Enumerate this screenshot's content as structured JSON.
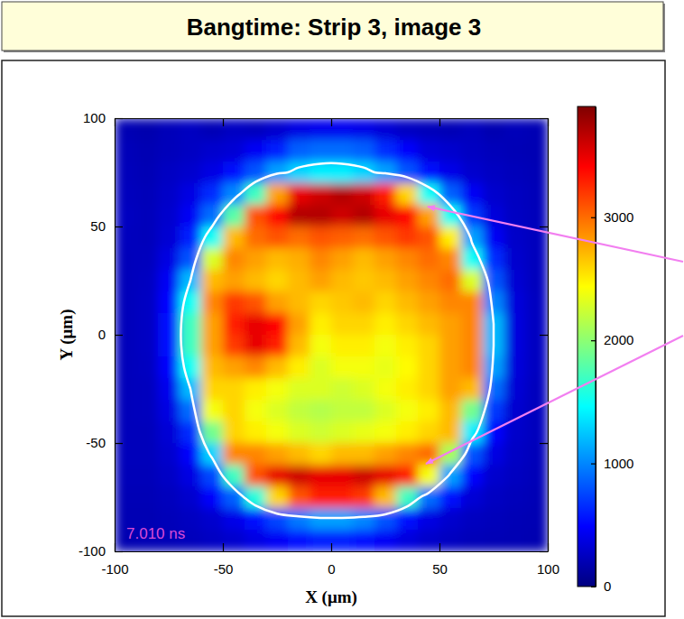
{
  "chart_data": {
    "type": "heatmap",
    "title": "Bangtime: Strip 3, image 3",
    "annotations": [
      "7.010 ns"
    ],
    "x_label": "X (μm)",
    "y_label": "Y (μm)",
    "xlim": [
      -100,
      100
    ],
    "ylim": [
      -100,
      100
    ],
    "xticks": [
      -100,
      -50,
      0,
      50,
      100
    ],
    "yticks": [
      -100,
      -50,
      0,
      50,
      100
    ],
    "x": [
      -95,
      -85,
      -75,
      -65,
      -55,
      -45,
      -35,
      -25,
      -15,
      -5,
      5,
      15,
      25,
      35,
      45,
      55,
      65,
      75,
      85,
      95
    ],
    "y": [
      95,
      85,
      75,
      65,
      55,
      45,
      35,
      25,
      15,
      5,
      -5,
      -15,
      -25,
      -35,
      -45,
      -55,
      -65,
      -75,
      -85,
      -95
    ],
    "cells": [
      [
        200,
        180,
        220,
        250,
        210,
        260,
        240,
        300,
        380,
        420,
        430,
        400,
        330,
        260,
        230,
        210,
        240,
        190,
        220,
        200
      ],
      [
        220,
        200,
        230,
        260,
        300,
        330,
        450,
        600,
        850,
        900,
        900,
        850,
        650,
        480,
        340,
        300,
        260,
        230,
        210,
        200
      ],
      [
        230,
        210,
        260,
        300,
        380,
        550,
        800,
        1100,
        1300,
        1400,
        1400,
        1300,
        1100,
        800,
        550,
        400,
        300,
        260,
        230,
        210
      ],
      [
        240,
        220,
        280,
        380,
        650,
        1000,
        1700,
        2800,
        3500,
        3600,
        3700,
        3600,
        3300,
        2600,
        1500,
        850,
        450,
        300,
        250,
        220
      ],
      [
        250,
        230,
        300,
        450,
        900,
        1800,
        3100,
        3400,
        3700,
        3700,
        3600,
        3700,
        3500,
        3400,
        2800,
        1500,
        700,
        350,
        260,
        230
      ],
      [
        240,
        230,
        320,
        600,
        1500,
        2700,
        3000,
        3100,
        3000,
        3100,
        3050,
        3000,
        3100,
        3200,
        3100,
        2500,
        1100,
        450,
        280,
        240
      ],
      [
        230,
        240,
        380,
        800,
        2300,
        2900,
        2800,
        2700,
        2750,
        2900,
        2800,
        2700,
        2800,
        2900,
        3000,
        2900,
        1500,
        650,
        300,
        240
      ],
      [
        230,
        250,
        450,
        1200,
        2700,
        2800,
        2700,
        2600,
        2700,
        2800,
        2700,
        2650,
        2700,
        2800,
        2900,
        3000,
        2300,
        800,
        320,
        240
      ],
      [
        230,
        260,
        500,
        1500,
        2900,
        3200,
        3100,
        2800,
        2700,
        2600,
        2650,
        2700,
        2600,
        2700,
        2800,
        2900,
        2900,
        1000,
        350,
        250
      ],
      [
        230,
        260,
        520,
        1700,
        2800,
        3300,
        3500,
        3400,
        2800,
        2500,
        2600,
        2600,
        2500,
        2600,
        2700,
        2800,
        2900,
        1200,
        360,
        250
      ],
      [
        230,
        260,
        520,
        1700,
        2800,
        3200,
        3500,
        3300,
        2700,
        2400,
        2500,
        2500,
        2400,
        2500,
        2600,
        2800,
        2900,
        1200,
        360,
        250
      ],
      [
        230,
        250,
        480,
        1500,
        2700,
        2800,
        2900,
        2700,
        2500,
        2300,
        2400,
        2400,
        2350,
        2450,
        2600,
        2800,
        2900,
        1100,
        350,
        250
      ],
      [
        230,
        240,
        420,
        1200,
        2600,
        2600,
        2500,
        2400,
        2300,
        2300,
        2250,
        2300,
        2400,
        2500,
        2600,
        2800,
        2700,
        900,
        330,
        240
      ],
      [
        230,
        240,
        380,
        900,
        2400,
        2600,
        2400,
        2300,
        2200,
        2150,
        2200,
        2200,
        2300,
        2400,
        2500,
        2700,
        1900,
        700,
        310,
        240
      ],
      [
        230,
        230,
        330,
        650,
        1900,
        2600,
        2500,
        2400,
        2300,
        2250,
        2300,
        2350,
        2400,
        2500,
        2600,
        2700,
        1400,
        500,
        290,
        240
      ],
      [
        230,
        230,
        300,
        480,
        1300,
        2900,
        2900,
        2800,
        2700,
        2600,
        2700,
        2700,
        2800,
        2900,
        3000,
        2100,
        800,
        380,
        270,
        230
      ],
      [
        220,
        220,
        270,
        380,
        750,
        1700,
        3100,
        3500,
        3600,
        3500,
        3500,
        3600,
        3500,
        3300,
        2400,
        1100,
        500,
        300,
        250,
        220
      ],
      [
        210,
        210,
        240,
        300,
        480,
        850,
        1600,
        2600,
        3100,
        3300,
        3300,
        3200,
        2700,
        1700,
        900,
        520,
        330,
        260,
        230,
        210
      ],
      [
        200,
        200,
        220,
        250,
        300,
        400,
        550,
        750,
        950,
        1100,
        1100,
        1000,
        800,
        550,
        380,
        300,
        250,
        230,
        210,
        200
      ],
      [
        190,
        200,
        210,
        230,
        260,
        300,
        380,
        450,
        550,
        600,
        600,
        550,
        450,
        360,
        290,
        250,
        220,
        210,
        200,
        190
      ]
    ],
    "colorbar": {
      "range": [
        0,
        3900
      ],
      "ticks": [
        0,
        1000,
        2000,
        3000
      ]
    },
    "contour": {
      "level": 1200
    }
  }
}
